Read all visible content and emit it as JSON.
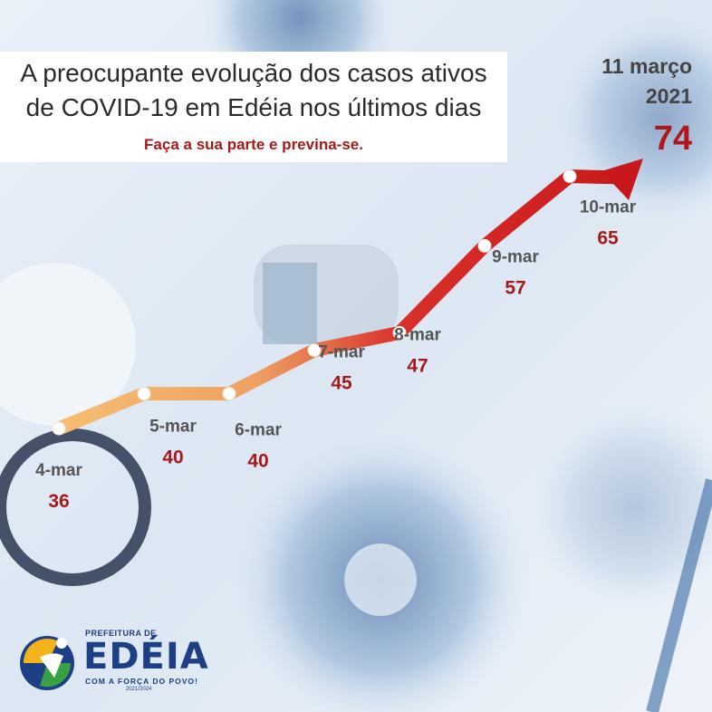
{
  "header": {
    "title_line1": "A preocupante evolução dos casos ativos",
    "title_line2": "de COVID-19 em Edéia nos últimos dias",
    "subtitle": "Faça a sua parte e previna-se."
  },
  "highlight": {
    "date_line1": "11 março",
    "date_line2": "2021",
    "value": "74"
  },
  "logo": {
    "top": "PREFEITURA DE",
    "main": "EDÉIA",
    "tagline": "COM A FORÇA DO POVO!",
    "term": "2021/2024"
  },
  "colors": {
    "title": "#2b2b2b",
    "accent_red": "#b0161c",
    "line_start": "#f6be72",
    "line_end": "#c8181c",
    "date_label": "#555555",
    "brand_blue": "#1d3f86"
  },
  "chart_data": {
    "type": "line",
    "title": "A preocupante evolução dos casos ativos de COVID-19 em Edéia nos últimos dias",
    "categories": [
      "4-mar",
      "5-mar",
      "6-mar",
      "7-mar",
      "8-mar",
      "9-mar",
      "10-mar",
      "11 março 2021"
    ],
    "series": [
      {
        "values": [
          36,
          40,
          40,
          45,
          47,
          57,
          65,
          74
        ]
      }
    ],
    "labels": [
      "4-mar",
      "5-mar",
      "6-mar",
      "7-mar",
      "8-mar",
      "9-mar",
      "10-mar"
    ],
    "value_labels": [
      "36",
      "40",
      "40",
      "45",
      "47",
      "57",
      "65"
    ],
    "grid": false,
    "legend": "none"
  }
}
